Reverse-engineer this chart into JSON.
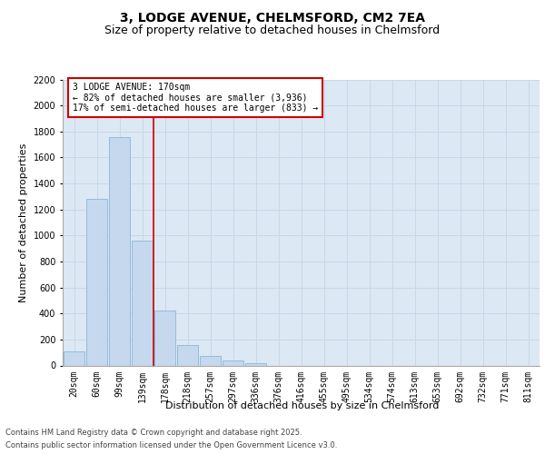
{
  "title_line1": "3, LODGE AVENUE, CHELMSFORD, CM2 7EA",
  "title_line2": "Size of property relative to detached houses in Chelmsford",
  "xlabel": "Distribution of detached houses by size in Chelmsford",
  "ylabel": "Number of detached properties",
  "categories": [
    "20sqm",
    "60sqm",
    "99sqm",
    "139sqm",
    "178sqm",
    "218sqm",
    "257sqm",
    "297sqm",
    "336sqm",
    "376sqm",
    "416sqm",
    "455sqm",
    "495sqm",
    "534sqm",
    "574sqm",
    "613sqm",
    "653sqm",
    "692sqm",
    "732sqm",
    "771sqm",
    "811sqm"
  ],
  "values": [
    110,
    1280,
    1760,
    960,
    420,
    155,
    75,
    35,
    20,
    0,
    0,
    0,
    0,
    0,
    0,
    0,
    0,
    0,
    0,
    0,
    0
  ],
  "bar_color": "#c5d8ed",
  "bar_edge_color": "#7aafd4",
  "grid_color": "#c8d8e8",
  "background_color": "#dce8f4",
  "annotation_box_color": "#cc0000",
  "property_line_color": "#cc0000",
  "property_line_x": 3.5,
  "annotation_text": "3 LODGE AVENUE: 170sqm\n← 82% of detached houses are smaller (3,936)\n17% of semi-detached houses are larger (833) →",
  "ylim": [
    0,
    2200
  ],
  "yticks": [
    0,
    200,
    400,
    600,
    800,
    1000,
    1200,
    1400,
    1600,
    1800,
    2000,
    2200
  ],
  "footnote1": "Contains HM Land Registry data © Crown copyright and database right 2025.",
  "footnote2": "Contains public sector information licensed under the Open Government Licence v3.0.",
  "title_fontsize": 10,
  "subtitle_fontsize": 9,
  "axis_label_fontsize": 8,
  "tick_fontsize": 7,
  "annotation_fontsize": 7,
  "footnote_fontsize": 6
}
